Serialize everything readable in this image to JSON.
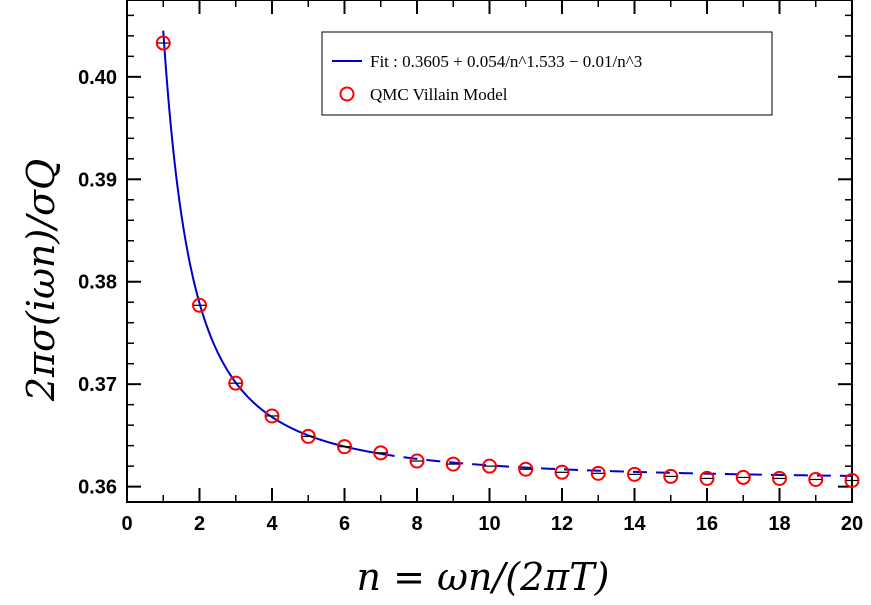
{
  "chart_data": {
    "type": "scatter",
    "xlabel": "n = ωn/(2πT)",
    "ylabel": "2πσ(iωn)/σQ",
    "xlim": [
      0,
      20
    ],
    "ylim": [
      0.3585,
      0.4075
    ],
    "x_ticks": [
      0,
      2,
      4,
      6,
      8,
      10,
      12,
      14,
      16,
      18,
      20
    ],
    "y_ticks": [
      0.36,
      0.37,
      0.38,
      0.39,
      0.4
    ],
    "x_tick_labels": [
      "0",
      "2",
      "4",
      "6",
      "8",
      "10",
      "12",
      "14",
      "16",
      "18",
      "20"
    ],
    "y_tick_labels": [
      "0.36",
      "0.37",
      "0.38",
      "0.39",
      "0.40"
    ],
    "grid": false,
    "legend_position": "top-right",
    "series": [
      {
        "name": "Fit : 0.3605 + 0.054/n^1.533 − 0.01/n^3",
        "kind": "line",
        "color": "#0000cc",
        "style": "solid up to n=7, dashed beyond",
        "solid_until": 7,
        "coefficients": {
          "c0": 0.3605,
          "a": 0.054,
          "p": 1.533,
          "b": 0.01,
          "q": 3
        }
      },
      {
        "name": "QMC Villain Model",
        "kind": "markers",
        "color": "#ff0000",
        "marker": "open-circle-with-errorbar",
        "x": [
          1,
          2,
          3,
          4,
          5,
          6,
          7,
          8,
          9,
          10,
          11,
          12,
          13,
          14,
          15,
          16,
          17,
          18,
          19,
          20
        ],
        "y": [
          0.4033,
          0.3777,
          0.3701,
          0.3669,
          0.3649,
          0.3639,
          0.3633,
          0.3625,
          0.3622,
          0.362,
          0.3617,
          0.3614,
          0.3613,
          0.3612,
          0.361,
          0.3608,
          0.3609,
          0.3608,
          0.3607,
          0.3606
        ]
      }
    ]
  }
}
